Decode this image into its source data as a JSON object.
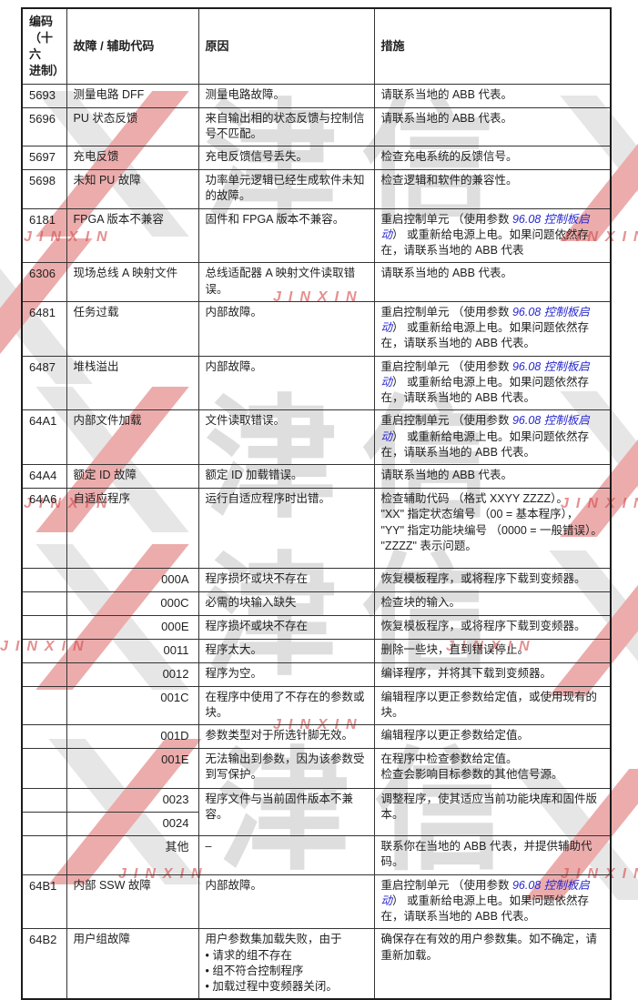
{
  "watermark": {
    "cn": "津信",
    "en": "JINXIN"
  },
  "colors": {
    "link_blue": "#2727cd",
    "border_dark": "#1c1c1c",
    "watermark_gray": "#bababa",
    "watermark_red": "#d34c4c"
  },
  "table": {
    "headers": {
      "code": "编码\n（十六\n进制）",
      "fault": "故障 / 辅助代码",
      "cause": "原因",
      "action": "措施"
    },
    "rows": [
      {
        "type": "main",
        "code": "5693",
        "fault": "测量电路 DFF",
        "cause": "测量电路故障。",
        "action": {
          "pre": "请联系当地的 ABB 代表。",
          "link": "",
          "post": ""
        }
      },
      {
        "type": "main",
        "code": "5696",
        "fault": "PU 状态反馈",
        "cause": "来自输出相的状态反馈与控制信号不匹配。",
        "action": {
          "pre": "请联系当地的 ABB 代表。",
          "link": "",
          "post": ""
        }
      },
      {
        "type": "main",
        "code": "5697",
        "fault": "充电反馈",
        "cause": "充电反馈信号丢失。",
        "action": {
          "pre": "检查充电系统的反馈信号。",
          "link": "",
          "post": ""
        }
      },
      {
        "type": "main",
        "code": "5698",
        "fault": "未知 PU 故障",
        "cause": "功率单元逻辑已经生成软件未知的故障。",
        "action": {
          "pre": "检查逻辑和软件的兼容性。",
          "link": "",
          "post": ""
        }
      },
      {
        "type": "main",
        "code": "6181",
        "fault": "FPGA 版本不兼容",
        "cause": "固件和 FPGA 版本不兼容。",
        "action": {
          "pre": "重启控制单元 （使用参数 ",
          "link": "96.08 控制板启动",
          "post": "） 或重新给电源上电。如果问题依然存在，请联系当地的 ABB 代表"
        }
      },
      {
        "type": "main",
        "code": "6306",
        "fault": "现场总线 A 映射文件",
        "cause": "总线适配器 A 映射文件读取错误。",
        "action": {
          "pre": "请联系当地的 ABB 代表。",
          "link": "",
          "post": ""
        }
      },
      {
        "type": "main",
        "code": "6481",
        "fault": "任务过载",
        "cause": "内部故障。",
        "action": {
          "pre": "重启控制单元 （使用参数 ",
          "link": "96.08 控制板启动",
          "post": "） 或重新给电源上电。如果问题依然存在，请联系当地的 ABB 代表。"
        }
      },
      {
        "type": "main",
        "code": "6487",
        "fault": "堆栈溢出",
        "cause": "内部故障。",
        "action": {
          "pre": "重启控制单元 （使用参数 ",
          "link": "96.08 控制板启动",
          "post": "） 或重新给电源上电。如果问题依然存在，请联系当地的 ABB 代表。"
        }
      },
      {
        "type": "main",
        "code": "64A1",
        "fault": "内部文件加载",
        "cause": "文件读取错误。",
        "action": {
          "pre": "重启控制单元 （使用参数 ",
          "link": "96.08 控制板启动",
          "post": "） 或重新给电源上电。如果问题依然存在，请联系当地的 ABB 代表。"
        }
      },
      {
        "type": "main",
        "code": "64A4",
        "fault": "额定 ID 故障",
        "cause": "额定 ID 加载错误。",
        "action": {
          "pre": "请联系当地的 ABB 代表。",
          "link": "",
          "post": ""
        }
      },
      {
        "type": "main",
        "code": "64A6",
        "fault": "自适应程序",
        "cause": "运行自适应程序时出错。",
        "action": {
          "pre": "检查辅助代码 （格式 XXYY ZZZZ）。\n\"XX\" 指定状态编号 （00 = 基本程序）， \"YY\" 指定功能块编号 （0000 = 一般错误）。\n\"ZZZZ\" 表示问题。",
          "link": "",
          "post": ""
        }
      },
      {
        "type": "sub",
        "code": "000A",
        "cause": "程序损坏或块不存在",
        "action": {
          "pre": "恢复模板程序，或将程序下载到变频器。",
          "link": "",
          "post": ""
        }
      },
      {
        "type": "sub",
        "code": "000C",
        "cause": "必需的块输入缺失",
        "action": {
          "pre": "检查块的输入。",
          "link": "",
          "post": ""
        }
      },
      {
        "type": "sub",
        "code": "000E",
        "cause": "程序损坏或块不存在",
        "action": {
          "pre": "恢复模板程序，或将程序下载到变频器。",
          "link": "",
          "post": ""
        }
      },
      {
        "type": "sub",
        "code": "0011",
        "cause": "程序太大。",
        "action": {
          "pre": "删除一些块，直到错误停止。",
          "link": "",
          "post": ""
        }
      },
      {
        "type": "sub",
        "code": "0012",
        "cause": "程序为空。",
        "action": {
          "pre": "编译程序，并将其下载到变频器。",
          "link": "",
          "post": ""
        }
      },
      {
        "type": "sub",
        "code": "001C",
        "cause": "在程序中使用了不存在的参数或块。",
        "action": {
          "pre": "编辑程序以更正参数给定值，或使用现有的块。",
          "link": "",
          "post": ""
        }
      },
      {
        "type": "sub",
        "code": "001D",
        "cause": "参数类型对于所选针脚无效。",
        "action": {
          "pre": "编辑程序以更正参数给定值。",
          "link": "",
          "post": ""
        }
      },
      {
        "type": "sub",
        "code": "001E",
        "cause": "无法输出到参数，因为该参数受到写保护。",
        "action": {
          "pre": "在程序中检查参数给定值。\n检查会影响目标参数的其他信号源。",
          "link": "",
          "post": ""
        }
      },
      {
        "type": "sub",
        "code": "0023",
        "rowspan2": true,
        "cause": "程序文件与当前固件版本不兼容。",
        "action": {
          "pre": "调整程序，使其适应当前功能块库和固件版本。",
          "link": "",
          "post": ""
        }
      },
      {
        "type": "sub",
        "code": "0024",
        "merged_up": true
      },
      {
        "type": "sub",
        "code": "其他",
        "cause": "–",
        "action": {
          "pre": "联系你在当地的 ABB 代表，并提供辅助代码。",
          "link": "",
          "post": ""
        }
      },
      {
        "type": "main",
        "code": "64B1",
        "fault": "内部 SSW 故障",
        "cause": "内部故障。",
        "action": {
          "pre": "重启控制单元 （使用参数 ",
          "link": "96.08 控制板启动",
          "post": "） 或重新给电源上电。如果问题依然存在，请联系当地的 ABB 代表。"
        }
      },
      {
        "type": "main",
        "code": "64B2",
        "fault": "用户组故障",
        "cause": "用户参数集加载失败，由于\n• 请求的组不存在\n• 组不符合控制程序\n• 加载过程中变频器关闭。",
        "action": {
          "pre": "确保存在有效的用户参数集。如不确定，请重新加载。",
          "link": "",
          "post": ""
        }
      }
    ]
  }
}
